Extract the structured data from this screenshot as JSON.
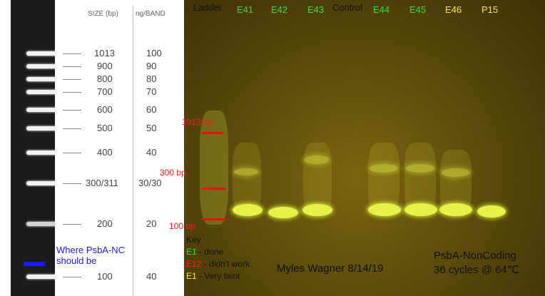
{
  "ladder_chart": {
    "size_header": "SIZE (bp)",
    "ng_header": "ng/BAND",
    "rows": [
      {
        "size": "1013",
        "ng": "100"
      },
      {
        "size": "900",
        "ng": "90"
      },
      {
        "size": "800",
        "ng": "80"
      },
      {
        "size": "700",
        "ng": "70"
      },
      {
        "size": "600",
        "ng": "60"
      },
      {
        "size": "500",
        "ng": "50"
      },
      {
        "size": "400",
        "ng": "40"
      },
      {
        "size": "300/311",
        "ng": "30/30"
      },
      {
        "size": "200",
        "ng": "20"
      },
      {
        "size": "100",
        "ng": "40"
      }
    ],
    "psba_note": "Where PsbA-NC\nshould be"
  },
  "gel": {
    "lanes": [
      {
        "label": "Ladder",
        "color": "#111111"
      },
      {
        "label": "E41",
        "color": "#33dd33"
      },
      {
        "label": "E42",
        "color": "#33dd33"
      },
      {
        "label": "E43",
        "color": "#33dd33"
      },
      {
        "label": "Control",
        "color": "#111111"
      },
      {
        "label": "E44",
        "color": "#33dd33"
      },
      {
        "label": "E45",
        "color": "#33dd33"
      },
      {
        "label": "E46",
        "color": "#f5e733"
      },
      {
        "label": "P15",
        "color": "#f5e733"
      }
    ],
    "markers": [
      {
        "label": "1013 bp"
      },
      {
        "label": "300 bp"
      },
      {
        "label": "100 bp"
      }
    ],
    "key": {
      "title": "Key",
      "entries": [
        {
          "code": "E1",
          "text": " - done",
          "color": "#33dd33"
        },
        {
          "code": "E12",
          "text": " - didn't work",
          "color": "#ff2020"
        },
        {
          "code": "E1",
          "text": " - Very faint",
          "color": "#f5e733"
        }
      ]
    },
    "author": "Myles Wagner 8/14/19",
    "method_line1": "PsbA-NonCoding",
    "method_line2": "36 cycles @ 64℃"
  }
}
